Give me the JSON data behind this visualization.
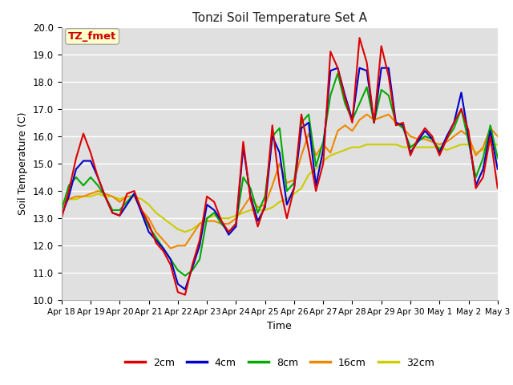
{
  "title": "Tonzi Soil Temperature Set A",
  "xlabel": "Time",
  "ylabel": "Soil Temperature (C)",
  "ylim": [
    10.0,
    20.0
  ],
  "yticks": [
    10.0,
    11.0,
    12.0,
    13.0,
    14.0,
    15.0,
    16.0,
    17.0,
    18.0,
    19.0,
    20.0
  ],
  "xtick_labels": [
    "Apr 18",
    "Apr 19",
    "Apr 20",
    "Apr 21",
    "Apr 22",
    "Apr 23",
    "Apr 24",
    "Apr 25",
    "Apr 26",
    "Apr 27",
    "Apr 28",
    "Apr 29",
    "Apr 30",
    "May 1",
    "May 2",
    "May 3"
  ],
  "annotation_text": "TZ_fmet",
  "annotation_color": "#cc0000",
  "annotation_bg": "#ffffcc",
  "bg_color": "#e0e0e0",
  "series": {
    "2cm": {
      "color": "#dd0000",
      "y": [
        13.0,
        14.0,
        15.2,
        16.1,
        15.4,
        14.5,
        13.8,
        13.2,
        13.1,
        13.9,
        14.0,
        13.3,
        12.8,
        12.1,
        11.8,
        11.3,
        10.3,
        10.2,
        11.3,
        12.2,
        13.8,
        13.6,
        12.9,
        12.5,
        12.8,
        15.8,
        13.7,
        12.7,
        13.5,
        16.4,
        14.2,
        13.0,
        14.1,
        16.8,
        15.5,
        14.0,
        15.0,
        19.1,
        18.5,
        17.4,
        16.5,
        19.6,
        18.7,
        16.5,
        19.3,
        18.2,
        16.4,
        16.5,
        15.3,
        15.9,
        16.3,
        16.0,
        15.3,
        15.9,
        16.5,
        17.0,
        16.2,
        14.1,
        14.5,
        16.0,
        14.1
      ]
    },
    "4cm": {
      "color": "#0000cc",
      "y": [
        13.1,
        13.8,
        14.8,
        15.1,
        15.1,
        14.5,
        13.8,
        13.2,
        13.1,
        13.5,
        13.9,
        13.2,
        12.5,
        12.2,
        11.9,
        11.5,
        10.6,
        10.4,
        11.2,
        12.0,
        13.5,
        13.3,
        12.9,
        12.4,
        12.7,
        15.6,
        13.8,
        12.9,
        13.4,
        16.0,
        15.4,
        13.5,
        14.1,
        16.3,
        16.5,
        14.2,
        15.5,
        18.4,
        18.5,
        17.5,
        16.6,
        18.5,
        18.4,
        16.5,
        18.5,
        18.5,
        16.5,
        16.4,
        15.4,
        15.8,
        16.2,
        15.9,
        15.4,
        16.0,
        16.5,
        17.6,
        16.0,
        14.2,
        14.8,
        16.2,
        14.8
      ]
    },
    "8cm": {
      "color": "#00aa00",
      "y": [
        13.3,
        14.2,
        14.5,
        14.2,
        14.5,
        14.2,
        13.8,
        13.3,
        13.3,
        13.6,
        13.9,
        13.3,
        12.7,
        12.3,
        11.9,
        11.5,
        11.1,
        10.9,
        11.1,
        11.5,
        13.0,
        13.2,
        12.8,
        12.5,
        12.8,
        14.5,
        14.1,
        13.2,
        13.8,
        16.0,
        16.3,
        14.0,
        14.3,
        16.5,
        16.8,
        14.9,
        15.8,
        17.5,
        18.3,
        17.2,
        16.6,
        17.2,
        17.8,
        16.5,
        17.7,
        17.5,
        16.5,
        16.3,
        15.6,
        15.8,
        16.0,
        15.9,
        15.5,
        15.9,
        16.3,
        17.0,
        15.8,
        14.5,
        15.2,
        16.4,
        15.2
      ]
    },
    "16cm": {
      "color": "#ee8800",
      "y": [
        13.5,
        13.7,
        13.8,
        13.8,
        13.9,
        14.0,
        13.9,
        13.8,
        13.6,
        13.8,
        13.8,
        13.3,
        13.0,
        12.5,
        12.2,
        11.9,
        12.0,
        12.0,
        12.4,
        12.8,
        12.9,
        12.9,
        12.8,
        12.8,
        13.0,
        13.4,
        13.8,
        13.4,
        13.5,
        14.2,
        15.0,
        14.3,
        14.4,
        15.3,
        16.1,
        15.3,
        15.7,
        15.4,
        16.2,
        16.4,
        16.2,
        16.6,
        16.8,
        16.6,
        16.7,
        16.8,
        16.5,
        16.3,
        16.0,
        15.9,
        15.9,
        15.8,
        15.7,
        15.8,
        16.0,
        16.2,
        16.0,
        15.3,
        15.6,
        16.3,
        16.0
      ]
    },
    "32cm": {
      "color": "#cccc00",
      "y": [
        13.6,
        13.7,
        13.7,
        13.8,
        13.8,
        13.9,
        13.8,
        13.8,
        13.7,
        13.8,
        13.8,
        13.7,
        13.5,
        13.2,
        13.0,
        12.8,
        12.6,
        12.5,
        12.6,
        12.8,
        13.0,
        13.1,
        13.0,
        13.0,
        13.1,
        13.2,
        13.3,
        13.3,
        13.3,
        13.4,
        13.6,
        13.7,
        13.9,
        14.1,
        14.6,
        14.8,
        15.1,
        15.3,
        15.4,
        15.5,
        15.6,
        15.6,
        15.7,
        15.7,
        15.7,
        15.7,
        15.7,
        15.6,
        15.6,
        15.6,
        15.6,
        15.6,
        15.6,
        15.5,
        15.6,
        15.7,
        15.7,
        15.4,
        15.5,
        15.7,
        15.7
      ]
    }
  },
  "legend_entries": [
    "2cm",
    "4cm",
    "8cm",
    "16cm",
    "32cm"
  ],
  "legend_colors": [
    "#dd0000",
    "#0000cc",
    "#00aa00",
    "#ee8800",
    "#cccc00"
  ]
}
